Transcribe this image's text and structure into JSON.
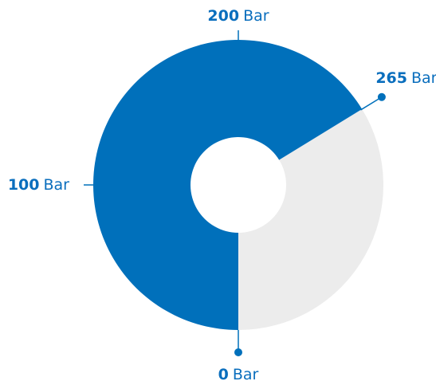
{
  "chart_data": {
    "type": "gauge",
    "unit": "Bar",
    "value": 265,
    "ylim": [
      0,
      400
    ],
    "yticks": [
      0,
      100,
      200
    ],
    "color": "#0070bb",
    "track_color": "#ececec",
    "text_color": "#0a6ebd"
  }
}
